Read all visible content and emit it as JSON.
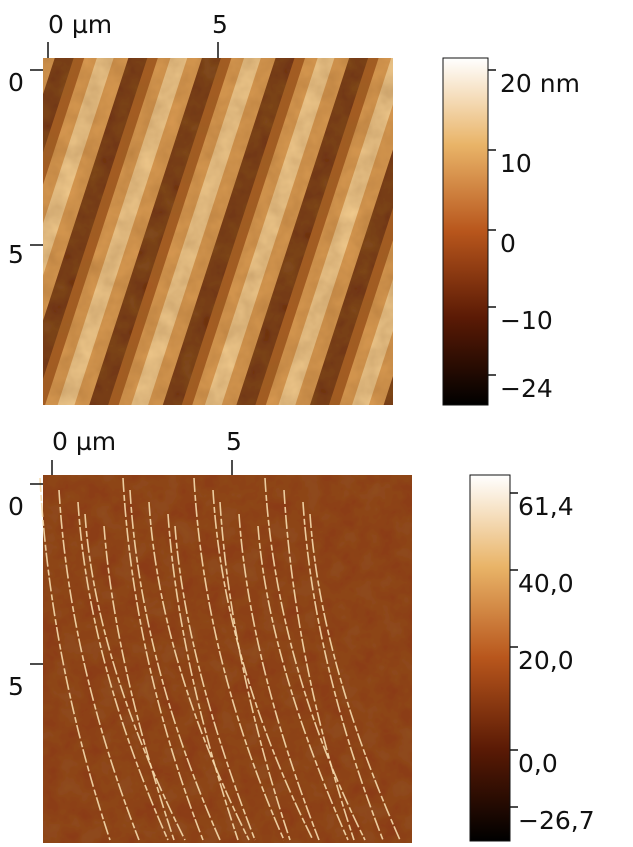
{
  "panels": [
    {
      "x_ticks": [
        "0 µm",
        "5"
      ],
      "y_ticks": [
        "0",
        "5"
      ],
      "colorbar_ticks": [
        "20 nm",
        "10",
        "0",
        "−10",
        "−24"
      ]
    },
    {
      "x_ticks": [
        "0 µm",
        "5"
      ],
      "y_ticks": [
        "0",
        "5"
      ],
      "colorbar_ticks": [
        "61,4",
        "40,0",
        "20,0",
        "0,0",
        "−26,7"
      ]
    }
  ]
}
